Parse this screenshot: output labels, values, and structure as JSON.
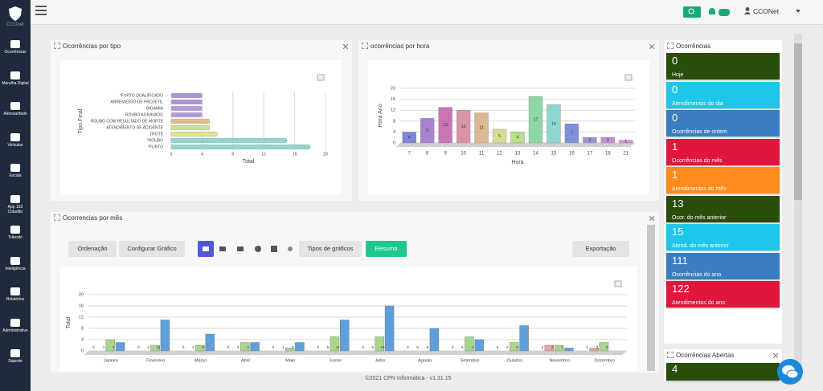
{
  "sidebar": {
    "brand": "CCOnet",
    "items": [
      "Ocorrências",
      "Muralha Digital",
      "Almoxarifado",
      "Veículos",
      "Escala",
      "App 153 Cidadão",
      "Trânsito",
      "Inteligência",
      "Relatórios",
      "Administrativo",
      "Suporte"
    ]
  },
  "topbar": {
    "user": "CCONet"
  },
  "panels": {
    "tipo": {
      "title": "Ocorrências por tipo",
      "chart": {
        "type": "hbar",
        "categories": [
          "*FURTO QUALIFICADO",
          "ARREMESSO DE PROJETIL",
          "BIGAMIA",
          "ROUBO AGRAVADO",
          "ROUBO COM RESULTADO DE MORTE",
          "ATENDIMENTO DE ACIDENTE",
          "TROTE",
          "*ROUBO",
          "*FURTO"
        ],
        "values": [
          4,
          4,
          4,
          4,
          5,
          5,
          6,
          15,
          18
        ],
        "colors": [
          "#a993d9",
          "#a993d9",
          "#b59ad8",
          "#b59ad8",
          "#e3b98a",
          "#c9e29a",
          "#e6e38f",
          "#8fd8cf",
          "#8fd8cf"
        ],
        "xlim": [
          0,
          20
        ],
        "xticks": [
          0,
          4,
          8,
          12,
          16,
          20
        ],
        "x_label": "Total",
        "y_label": "Tipo Final",
        "grid": true
      }
    },
    "hora": {
      "title": "ocorrências por hora",
      "chart": {
        "type": "bar",
        "categories": [
          "7",
          "8",
          "9",
          "10",
          "11",
          "12",
          "13",
          "14",
          "15",
          "16",
          "17",
          "18",
          "21"
        ],
        "values": [
          4,
          9,
          13,
          12,
          11,
          5,
          4,
          17,
          14,
          7,
          2,
          2,
          1
        ],
        "colors": [
          "#7f86d8",
          "#a783cf",
          "#c775b4",
          "#d994a6",
          "#dcb890",
          "#d7dc93",
          "#b6e08e",
          "#8fd8a6",
          "#8fd6d1",
          "#7d90d9",
          "#a38fd8",
          "#c68fd2",
          "#d58fd6"
        ],
        "ylim": [
          0,
          20
        ],
        "yticks": [
          0,
          4,
          8,
          12,
          16,
          20
        ],
        "x_label": "Hora",
        "y_label": "Hora Ano",
        "grid": true
      }
    },
    "mes": {
      "title": "Ocorrencias por mês",
      "toolbar": [
        "Ordenação",
        "Configurar Gráfico",
        "Tipos de gráficos",
        "Resumo",
        "Exportação"
      ],
      "chart": {
        "type": "groupedbar",
        "categories": [
          "Janeiro",
          "Fevereiro",
          "Março",
          "Abril",
          "Maio",
          "Junho",
          "Julho",
          "Agosto",
          "Setembro",
          "Outubro",
          "Novembro",
          "Dezembro"
        ],
        "series": [
          {
            "color": "#e9a3a3",
            "values": [
              0,
              0,
              0,
              0,
              0,
              0,
              0,
              0,
              0,
              0,
              2,
              1
            ]
          },
          {
            "color": "#a9d68b",
            "values": [
              4,
              2,
              2,
              3,
              1,
              5,
              5,
              0,
              5,
              3,
              2,
              3
            ]
          },
          {
            "color": "#5f9fd9",
            "values": [
              3,
              11,
              6,
              3,
              3,
              11,
              16,
              8,
              4,
              9,
              1,
              0
            ]
          }
        ],
        "ylim": [
          0,
          20
        ],
        "yticks": [
          0,
          4,
          8,
          12,
          16,
          20
        ],
        "y_label": "Total",
        "grid": true
      }
    },
    "resumo": {
      "title": "Ocorrências",
      "cards": [
        {
          "value": 0,
          "label": "Hoje",
          "color": "#2a4d0c"
        },
        {
          "value": 0,
          "label": "Atendimentos do dia",
          "color": "#1ec6ea"
        },
        {
          "value": 0,
          "label": "Ocorrências de ontem",
          "color": "#3b7dc0"
        },
        {
          "value": 1,
          "label": "Ocorrências do mês",
          "color": "#e0163c"
        },
        {
          "value": 1,
          "label": "Atendimentos do mês",
          "color": "#ff8b1c"
        },
        {
          "value": 13,
          "label": "Ocor. do mês anterior",
          "color": "#2a4d0c"
        },
        {
          "value": 15,
          "label": "Atend. do mês anterior",
          "color": "#1ec6ea"
        },
        {
          "value": 111,
          "label": "Ocorrências do ano",
          "color": "#3b7dc0"
        },
        {
          "value": 122,
          "label": "Atendimentos do ano",
          "color": "#e0163c"
        }
      ]
    },
    "abertas": {
      "title": "Ocorrências Abertas",
      "value": 4,
      "color": "#2a4d0c"
    }
  },
  "footer": "©2021 CPN Informática - v1.31.15"
}
